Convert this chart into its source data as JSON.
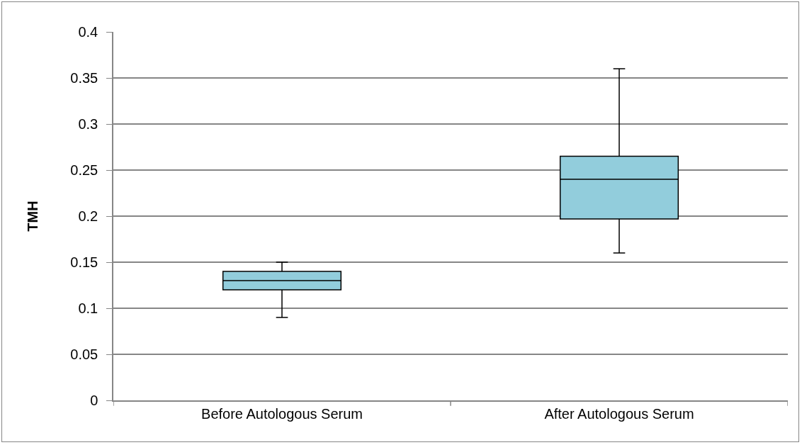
{
  "chart_data": {
    "type": "box",
    "ylabel": "TMH",
    "categories": [
      "Before Autologous Serum",
      "After Autologous Serum"
    ],
    "boxes": [
      {
        "low": 0.09,
        "q1": 0.12,
        "median": 0.13,
        "q3": 0.14,
        "high": 0.15
      },
      {
        "low": 0.16,
        "q1": 0.197,
        "median": 0.24,
        "q3": 0.265,
        "high": 0.36
      }
    ],
    "color": "#92cddc",
    "ylim": [
      0,
      0.4
    ],
    "yticks": [
      0,
      0.05,
      0.1,
      0.15,
      0.2,
      0.25,
      0.3,
      0.35,
      0.4
    ],
    "grid": "y",
    "legend": false
  }
}
